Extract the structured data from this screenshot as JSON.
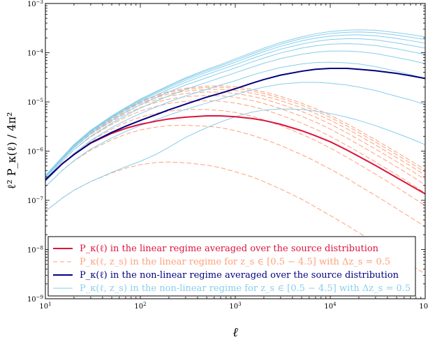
{
  "chart_data": {
    "type": "line",
    "xscale": "log",
    "yscale": "log",
    "xlim": [
      10,
      100000
    ],
    "ylim": [
      1e-09,
      0.001
    ],
    "xlabel": "ℓ",
    "ylabel": "ℓ² P_κ(ℓ) / 4π²",
    "grid": false,
    "legend_position": "lower-left",
    "x_ticks": [
      {
        "value": 10,
        "base": "10",
        "exp": "1"
      },
      {
        "value": 100,
        "base": "10",
        "exp": "2"
      },
      {
        "value": 1000,
        "base": "10",
        "exp": "3"
      },
      {
        "value": 10000,
        "base": "10",
        "exp": "4"
      },
      {
        "value": 100000,
        "base": "10",
        "exp": "5"
      }
    ],
    "y_ticks": [
      {
        "value": 1e-09,
        "base": "10",
        "exp": "−9"
      },
      {
        "value": 1e-08,
        "base": "10",
        "exp": "−8"
      },
      {
        "value": 1e-07,
        "base": "10",
        "exp": "−7"
      },
      {
        "value": 1e-06,
        "base": "10",
        "exp": "−6"
      },
      {
        "value": 1e-05,
        "base": "10",
        "exp": "−5"
      },
      {
        "value": 0.0001,
        "base": "10",
        "exp": "−4"
      },
      {
        "value": 0.001,
        "base": "10",
        "exp": "−3"
      }
    ],
    "legend": [
      {
        "label": "P_κ(ℓ) in the linear regime averaged over the source distribution",
        "color": "#dc143c",
        "dash": "solid",
        "width": 2
      },
      {
        "label": "P_κ(ℓ, z_s) in the linear regime for z_s ∈ [0.5 − 4.5] with Δz_s = 0.5",
        "color": "#ffa07a",
        "dash": "dashed",
        "width": 1
      },
      {
        "label": "P_κ(ℓ) in the non-linear regime averaged over the source distribution",
        "color": "#000080",
        "dash": "solid",
        "width": 2
      },
      {
        "label": "P_κ(ℓ, z_s) in the non-linear regime for z_s ∈ [0.5 − 4.5] with Δz_s = 0.5",
        "color": "#87ceeb",
        "dash": "solid",
        "width": 1
      }
    ],
    "x": [
      10,
      15,
      20,
      30,
      50,
      70,
      100,
      150,
      200,
      300,
      500,
      700,
      1000,
      1500,
      2000,
      3000,
      5000,
      7000,
      10000,
      15000,
      20000,
      30000,
      50000,
      70000,
      100000
    ],
    "series": [
      {
        "group": "linear-zs",
        "color": "#ffa07a",
        "dash": "dashed",
        "width": 1,
        "values": [
          6e-08,
          1.1e-07,
          1.6e-07,
          2.4e-07,
          3.6e-07,
          4.5e-07,
          5.3e-07,
          5.9e-07,
          6e-07,
          5.8e-07,
          5.2e-07,
          4.6e-07,
          3.8e-07,
          3e-07,
          2.4e-07,
          1.7e-07,
          1.05e-07,
          7.3e-08,
          4.9e-08,
          3.1e-08,
          2.2e-08,
          1.35e-08,
          7.3e-09,
          4.9e-09,
          3.2e-09
        ]
      },
      {
        "group": "linear-zs",
        "color": "#ffa07a",
        "dash": "dashed",
        "width": 1,
        "values": [
          1.9e-07,
          4e-07,
          6.3e-07,
          1.05e-06,
          1.7e-06,
          2.2e-06,
          2.7e-06,
          3.1e-06,
          3.3e-06,
          3.35e-06,
          3.2e-06,
          3e-06,
          2.6e-06,
          2.1e-06,
          1.75e-06,
          1.3e-06,
          8.5e-07,
          6.2e-07,
          4.3e-07,
          2.8e-07,
          2e-07,
          1.25e-07,
          6.8e-08,
          4.5e-08,
          2.9e-08
        ]
      },
      {
        "group": "linear-zs",
        "color": "#ffa07a",
        "dash": "dashed",
        "width": 1,
        "values": [
          2.4e-07,
          5.4e-07,
          9e-07,
          1.6e-06,
          2.8e-06,
          3.8e-06,
          4.9e-06,
          5.9e-06,
          6.5e-06,
          7e-06,
          7e-06,
          6.7e-06,
          6.1e-06,
          5.1e-06,
          4.3e-06,
          3.3e-06,
          2.2e-06,
          1.65e-06,
          1.15e-06,
          7.5e-07,
          5.4e-07,
          3.4e-07,
          1.85e-07,
          1.22e-07,
          7.8e-08
        ]
      },
      {
        "group": "linear-zs",
        "color": "#ffa07a",
        "dash": "dashed",
        "width": 1,
        "values": [
          2.7e-07,
          6.2e-07,
          1.07e-06,
          1.95e-06,
          3.5e-06,
          4.9e-06,
          6.5e-06,
          8.2e-06,
          9.3e-06,
          1.03e-05,
          1.06e-05,
          1.03e-05,
          9.5e-06,
          8.1e-06,
          7e-06,
          5.4e-06,
          3.7e-06,
          2.8e-06,
          2e-06,
          1.3e-06,
          9.5e-07,
          6e-07,
          3.3e-07,
          2.2e-07,
          1.4e-07
        ]
      },
      {
        "group": "linear-zs",
        "color": "#ffa07a",
        "dash": "dashed",
        "width": 1,
        "values": [
          2.9e-07,
          6.7e-07,
          1.17e-06,
          2.2e-06,
          4e-06,
          5.7e-06,
          7.7e-06,
          9.9e-06,
          1.14e-05,
          1.28e-05,
          1.35e-05,
          1.33e-05,
          1.24e-05,
          1.07e-05,
          9.3e-06,
          7.3e-06,
          5.1e-06,
          3.9e-06,
          2.8e-06,
          1.85e-06,
          1.35e-06,
          8.6e-07,
          4.8e-07,
          3.2e-07,
          2.05e-07
        ]
      },
      {
        "group": "linear-zs",
        "color": "#ffa07a",
        "dash": "dashed",
        "width": 1,
        "values": [
          3e-07,
          7e-07,
          1.24e-06,
          2.35e-06,
          4.4e-06,
          6.3e-06,
          8.7e-06,
          1.13e-05,
          1.31e-05,
          1.49e-05,
          1.59e-05,
          1.58e-05,
          1.49e-05,
          1.3e-05,
          1.14e-05,
          9e-06,
          6.4e-06,
          4.9e-06,
          3.55e-06,
          2.35e-06,
          1.72e-06,
          1.1e-06,
          6.1e-07,
          4.1e-07,
          2.65e-07
        ]
      },
      {
        "group": "linear-zs",
        "color": "#ffa07a",
        "dash": "dashed",
        "width": 1,
        "values": [
          3.1e-07,
          7.2e-07,
          1.29e-06,
          2.47e-06,
          4.65e-06,
          6.7e-06,
          9.4e-06,
          1.24e-05,
          1.45e-05,
          1.66e-05,
          1.8e-05,
          1.8e-05,
          1.71e-05,
          1.5e-05,
          1.33e-05,
          1.06e-05,
          7.6e-06,
          5.8e-06,
          4.25e-06,
          2.85e-06,
          2.08e-06,
          1.33e-06,
          7.4e-07,
          5e-07,
          3.25e-07
        ]
      },
      {
        "group": "linear-zs",
        "color": "#ffa07a",
        "dash": "dashed",
        "width": 1,
        "values": [
          3.15e-07,
          7.4e-07,
          1.33e-06,
          2.55e-06,
          4.85e-06,
          7e-06,
          9.9e-06,
          1.32e-05,
          1.56e-05,
          1.8e-05,
          1.97e-05,
          1.98e-05,
          1.89e-05,
          1.67e-05,
          1.48e-05,
          1.19e-05,
          8.6e-06,
          6.6e-06,
          4.85e-06,
          3.25e-06,
          2.38e-06,
          1.53e-06,
          8.5e-07,
          5.7e-07,
          3.75e-07
        ]
      },
      {
        "group": "linear-zs",
        "color": "#ffa07a",
        "dash": "dashed",
        "width": 1,
        "values": [
          3.2e-07,
          7.5e-07,
          1.36e-06,
          2.62e-06,
          5e-06,
          7.2e-06,
          1.03e-05,
          1.38e-05,
          1.64e-05,
          1.9e-05,
          2.1e-05,
          2.12e-05,
          2.03e-05,
          1.8e-05,
          1.6e-05,
          1.3e-05,
          9.4e-06,
          7.3e-06,
          5.35e-06,
          3.6e-06,
          2.65e-06,
          1.7e-06,
          9.5e-07,
          6.4e-07,
          4.2e-07
        ]
      },
      {
        "group": "nonlinear-zs",
        "color": "#87ceeb",
        "dash": "solid",
        "width": 1,
        "values": [
          6e-08,
          1.1e-07,
          1.6e-07,
          2.4e-07,
          3.7e-07,
          4.8e-07,
          6.2e-07,
          8.8e-07,
          1.2e-06,
          1.9e-06,
          3e-06,
          3.9e-06,
          5e-06,
          6.2e-06,
          6.8e-06,
          7.2e-06,
          7e-06,
          6.5e-06,
          5.8e-06,
          4.9e-06,
          4.2e-06,
          3.3e-06,
          2.3e-06,
          1.8e-06,
          1.35e-06
        ]
      },
      {
        "group": "nonlinear-zs",
        "color": "#87ceeb",
        "dash": "solid",
        "width": 1,
        "values": [
          1.9e-07,
          4e-07,
          6.4e-07,
          1.1e-06,
          1.85e-06,
          2.5e-06,
          3.3e-06,
          4.4e-06,
          5.4e-06,
          7e-06,
          9.5e-06,
          1.15e-05,
          1.4e-05,
          1.75e-05,
          2e-05,
          2.3e-05,
          2.5e-05,
          2.5e-05,
          2.4e-05,
          2.2e-05,
          2e-05,
          1.7e-05,
          1.3e-05,
          1.1e-05,
          8.8e-06
        ]
      },
      {
        "group": "nonlinear-zs",
        "color": "#87ceeb",
        "dash": "solid",
        "width": 1,
        "values": [
          2.4e-07,
          5.4e-07,
          9e-07,
          1.65e-06,
          3e-06,
          4.2e-06,
          5.8e-06,
          8e-06,
          1e-05,
          1.32e-05,
          1.8e-05,
          2.2e-05,
          2.7e-05,
          3.5e-05,
          4.1e-05,
          5e-05,
          5.9e-05,
          6.3e-05,
          6.4e-05,
          6.2e-05,
          5.9e-05,
          5.2e-05,
          4.2e-05,
          3.6e-05,
          3e-05
        ]
      },
      {
        "group": "nonlinear-zs",
        "color": "#87ceeb",
        "dash": "solid",
        "width": 1,
        "values": [
          2.7e-07,
          6.2e-07,
          1.07e-06,
          2e-06,
          3.7e-06,
          5.3e-06,
          7.5e-06,
          1.05e-05,
          1.33e-05,
          1.8e-05,
          2.5e-05,
          3.1e-05,
          3.9e-05,
          5.1e-05,
          6.1e-05,
          7.6e-05,
          9.3e-05,
          0.000102,
          0.000108,
          0.000108,
          0.000105,
          9.6e-05,
          8e-05,
          7e-05,
          6e-05
        ]
      },
      {
        "group": "nonlinear-zs",
        "color": "#87ceeb",
        "dash": "solid",
        "width": 1,
        "values": [
          2.9e-07,
          6.7e-07,
          1.17e-06,
          2.25e-06,
          4.2e-06,
          6.1e-06,
          8.8e-06,
          1.25e-05,
          1.6e-05,
          2.2e-05,
          3.1e-05,
          3.9e-05,
          4.9e-05,
          6.5e-05,
          7.8e-05,
          9.9e-05,
          0.000124,
          0.000138,
          0.000149,
          0.000152,
          0.00015,
          0.00014,
          0.00012,
          0.000106,
          9.2e-05
        ]
      },
      {
        "group": "nonlinear-zs",
        "color": "#87ceeb",
        "dash": "solid",
        "width": 1,
        "values": [
          3e-07,
          7e-07,
          1.24e-06,
          2.4e-06,
          4.6e-06,
          6.7e-06,
          9.8e-06,
          1.4e-05,
          1.8e-05,
          2.5e-05,
          3.6e-05,
          4.5e-05,
          5.7e-05,
          7.6e-05,
          9.2e-05,
          0.000118,
          0.00015,
          0.000169,
          0.000185,
          0.000192,
          0.000192,
          0.000182,
          0.000158,
          0.000141,
          0.000124
        ]
      },
      {
        "group": "nonlinear-zs",
        "color": "#87ceeb",
        "dash": "solid",
        "width": 1,
        "values": [
          3.1e-07,
          7.2e-07,
          1.29e-06,
          2.52e-06,
          4.85e-06,
          7.1e-06,
          1.05e-05,
          1.52e-05,
          1.96e-05,
          2.75e-05,
          4e-05,
          5e-05,
          6.4e-05,
          8.6e-05,
          0.000105,
          0.000135,
          0.000174,
          0.000198,
          0.000218,
          0.000229,
          0.00023,
          0.000221,
          0.000195,
          0.000176,
          0.000156
        ]
      },
      {
        "group": "nonlinear-zs",
        "color": "#87ceeb",
        "dash": "solid",
        "width": 1,
        "values": [
          3.15e-07,
          7.4e-07,
          1.33e-06,
          2.6e-06,
          5.05e-06,
          7.45e-06,
          1.1e-05,
          1.6e-05,
          2.08e-05,
          2.95e-05,
          4.3e-05,
          5.4e-05,
          7e-05,
          9.4e-05,
          0.000115,
          0.000149,
          0.000194,
          0.000222,
          0.000246,
          0.00026,
          0.000264,
          0.000256,
          0.000228,
          0.000207,
          0.000185
        ]
      },
      {
        "group": "nonlinear-zs",
        "color": "#87ceeb",
        "dash": "solid",
        "width": 1,
        "values": [
          3.2e-07,
          7.5e-07,
          1.36e-06,
          2.66e-06,
          5.2e-06,
          7.7e-06,
          1.14e-05,
          1.66e-05,
          2.17e-05,
          3.1e-05,
          4.55e-05,
          5.75e-05,
          7.5e-05,
          0.000101,
          0.000124,
          0.000161,
          0.00021,
          0.000242,
          0.00027,
          0.000287,
          0.000292,
          0.000285,
          0.000256,
          0.000233,
          0.00021
        ]
      },
      {
        "group": "linear-avg",
        "color": "#dc143c",
        "dash": "solid",
        "width": 2,
        "values": [
          2.6e-07,
          5.5e-07,
          8.5e-07,
          1.45e-06,
          2.3e-06,
          2.9e-06,
          3.5e-06,
          4.1e-06,
          4.5e-06,
          4.9e-06,
          5.2e-06,
          5.2e-06,
          5e-06,
          4.6e-06,
          4.2e-06,
          3.5e-06,
          2.6e-06,
          2.05e-06,
          1.55e-06,
          1.05e-06,
          7.8e-07,
          5.1e-07,
          2.9e-07,
          2e-07,
          1.35e-07
        ]
      },
      {
        "group": "nonlinear-avg",
        "color": "#000080",
        "dash": "solid",
        "width": 2,
        "values": [
          2.6e-07,
          5.5e-07,
          8.5e-07,
          1.47e-06,
          2.4e-06,
          3.2e-06,
          4.2e-06,
          5.6e-06,
          6.9e-06,
          9e-06,
          1.25e-05,
          1.5e-05,
          1.85e-05,
          2.4e-05,
          2.85e-05,
          3.5e-05,
          4.2e-05,
          4.6e-05,
          4.8e-05,
          4.8e-05,
          4.6e-05,
          4.3e-05,
          3.8e-05,
          3.4e-05,
          3e-05
        ]
      }
    ]
  }
}
